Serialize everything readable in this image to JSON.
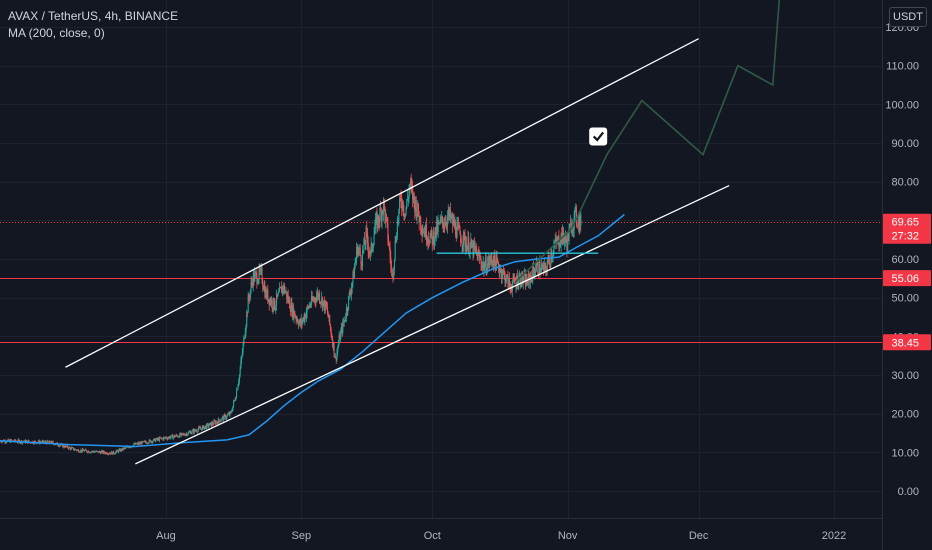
{
  "header": {
    "symbol_line": "AVAX / TetherUS, 4h, BINANCE",
    "indicator_line": "MA (200, close, 0)",
    "currency_label": "USDT"
  },
  "colors": {
    "background": "#131722",
    "grid": "#1e222d",
    "candle_up": "#26a69a",
    "candle_down": "#ef5350",
    "ma_line": "#2196f3",
    "trend_lines": "#ffffff",
    "horizontal_levels": "#f23645",
    "projection_path": "#2e5b45"
  },
  "chart_data": {
    "type": "line",
    "title": "AVAX / TetherUS, 4h, BINANCE",
    "x_axis": {
      "tick_labels": [
        "Aug",
        "Sep",
        "Oct",
        "Nov",
        "Dec",
        "2022"
      ],
      "tick_dates": [
        "2021-08-01",
        "2021-09-01",
        "2021-10-01",
        "2021-11-01",
        "2021-12-01",
        "2022-01-01"
      ],
      "range": [
        "2021-06-24",
        "2022-01-12"
      ]
    },
    "y_axis": {
      "range": [
        -7,
        127
      ],
      "tick_labels": [
        "0.00",
        "10.00",
        "20.00",
        "30.00",
        "40.00",
        "50.00",
        "60.00",
        "70.00",
        "80.00",
        "90.00",
        "100.00",
        "110.00",
        "120.00"
      ],
      "tick_values": [
        0,
        10,
        20,
        30,
        40,
        50,
        60,
        70,
        80,
        90,
        100,
        110,
        120
      ],
      "scale": "linear",
      "position": "right"
    },
    "grid": true,
    "price_path": [
      [
        "2021-06-24",
        13
      ],
      [
        "2021-07-06",
        12.5
      ],
      [
        "2021-07-12",
        10.5
      ],
      [
        "2021-07-20",
        9.8
      ],
      [
        "2021-07-25",
        12
      ],
      [
        "2021-07-31",
        13.5
      ],
      [
        "2021-08-05",
        14.5
      ],
      [
        "2021-08-10",
        16.5
      ],
      [
        "2021-08-13",
        18
      ],
      [
        "2021-08-16",
        20
      ],
      [
        "2021-08-17",
        24
      ],
      [
        "2021-08-18",
        30
      ],
      [
        "2021-08-19",
        39
      ],
      [
        "2021-08-20",
        49
      ],
      [
        "2021-08-21",
        55
      ],
      [
        "2021-08-23",
        56
      ],
      [
        "2021-08-24",
        51
      ],
      [
        "2021-08-26",
        48
      ],
      [
        "2021-08-28",
        53
      ],
      [
        "2021-08-30",
        47
      ],
      [
        "2021-09-01",
        43
      ],
      [
        "2021-09-03",
        48
      ],
      [
        "2021-09-05",
        51
      ],
      [
        "2021-09-07",
        47
      ],
      [
        "2021-09-08",
        41
      ],
      [
        "2021-09-09",
        34
      ],
      [
        "2021-09-10",
        40
      ],
      [
        "2021-09-11",
        44
      ],
      [
        "2021-09-13",
        55
      ],
      [
        "2021-09-14",
        63
      ],
      [
        "2021-09-15",
        60
      ],
      [
        "2021-09-16",
        66
      ],
      [
        "2021-09-17",
        61
      ],
      [
        "2021-09-18",
        68
      ],
      [
        "2021-09-20",
        74
      ],
      [
        "2021-09-21",
        66
      ],
      [
        "2021-09-22",
        55
      ],
      [
        "2021-09-23",
        68
      ],
      [
        "2021-09-24",
        76
      ],
      [
        "2021-09-25",
        72
      ],
      [
        "2021-09-26",
        79
      ],
      [
        "2021-09-27",
        75
      ],
      [
        "2021-09-29",
        68
      ],
      [
        "2021-10-01",
        65
      ],
      [
        "2021-10-03",
        69
      ],
      [
        "2021-10-05",
        71
      ],
      [
        "2021-10-07",
        67
      ],
      [
        "2021-10-09",
        64
      ],
      [
        "2021-10-11",
        62
      ],
      [
        "2021-10-13",
        58
      ],
      [
        "2021-10-15",
        60
      ],
      [
        "2021-10-17",
        57
      ],
      [
        "2021-10-19",
        53
      ],
      [
        "2021-10-21",
        55
      ],
      [
        "2021-10-23",
        54
      ],
      [
        "2021-10-25",
        58
      ],
      [
        "2021-10-27",
        57
      ],
      [
        "2021-10-29",
        63
      ],
      [
        "2021-10-31",
        66
      ],
      [
        "2021-11-01",
        64
      ],
      [
        "2021-11-02",
        69
      ],
      [
        "2021-11-03",
        71
      ],
      [
        "2021-11-04",
        69.65
      ]
    ],
    "series": [
      {
        "name": "MA (200, close, 0)",
        "points": [
          [
            "2021-06-24",
            13
          ],
          [
            "2021-07-10",
            12
          ],
          [
            "2021-07-25",
            11.5
          ],
          [
            "2021-08-05",
            12.5
          ],
          [
            "2021-08-15",
            13.2
          ],
          [
            "2021-08-20",
            14.5
          ],
          [
            "2021-08-24",
            18
          ],
          [
            "2021-08-28",
            22
          ],
          [
            "2021-09-01",
            25.5
          ],
          [
            "2021-09-05",
            28.5
          ],
          [
            "2021-09-10",
            31.5
          ],
          [
            "2021-09-15",
            36
          ],
          [
            "2021-09-20",
            41
          ],
          [
            "2021-09-25",
            46
          ],
          [
            "2021-10-01",
            50
          ],
          [
            "2021-10-08",
            54
          ],
          [
            "2021-10-15",
            57.5
          ],
          [
            "2021-10-20",
            59.3
          ],
          [
            "2021-10-25",
            60
          ],
          [
            "2021-10-30",
            60.5
          ],
          [
            "2021-11-03",
            63
          ],
          [
            "2021-11-08",
            66
          ],
          [
            "2021-11-14",
            71.5
          ]
        ]
      }
    ],
    "levels": [
      {
        "value": 55.06,
        "label": "55.06",
        "color": "#f23645"
      },
      {
        "value": 38.45,
        "label": "38.45",
        "color": "#f23645"
      }
    ],
    "last_price": {
      "value": 69.65,
      "label": "69.65",
      "countdown": "27:32"
    },
    "channel": {
      "upper": [
        [
          "2021-07-09",
          32
        ],
        [
          "2021-12-01",
          117
        ]
      ],
      "lower": [
        [
          "2021-07-25",
          7
        ],
        [
          "2021-12-08",
          79
        ]
      ]
    },
    "annotations": {
      "support_segment": [
        [
          "2021-10-02",
          61.5
        ],
        [
          "2021-11-08",
          61.5
        ]
      ],
      "projection_path": [
        [
          "2021-10-20",
          54
        ],
        [
          "2021-11-02",
          68
        ],
        [
          "2021-11-10",
          87
        ],
        [
          "2021-11-18",
          101
        ],
        [
          "2021-12-02",
          87
        ],
        [
          "2021-12-10",
          110
        ],
        [
          "2021-12-18",
          105
        ],
        [
          "2021-12-20",
          135
        ]
      ],
      "checkmark_at": [
        "2021-11-08",
        91.7
      ]
    }
  }
}
